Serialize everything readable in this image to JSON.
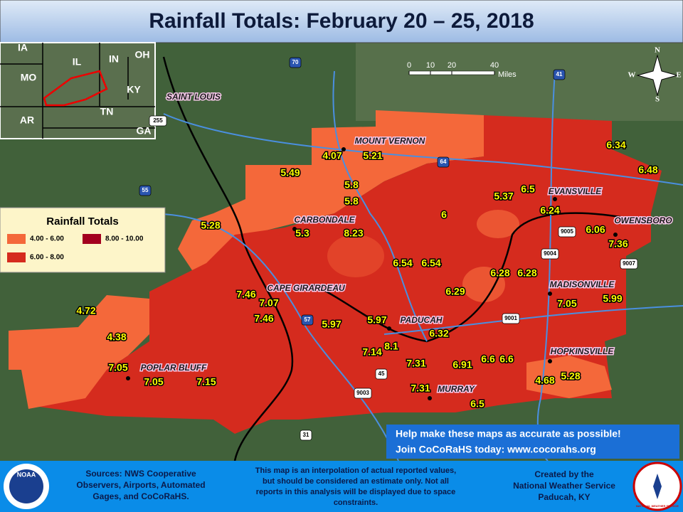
{
  "title": "Rainfall Totals: February 20 – 25, 2018",
  "legend": {
    "title": "Rainfall Totals",
    "items": [
      {
        "label": "4.00 - 6.00",
        "color": "#f4683a"
      },
      {
        "label": "6.00 - 8.00",
        "color": "#d52b1e"
      },
      {
        "label": "8.00 - 10.00",
        "color": "#a3001f"
      }
    ]
  },
  "cities": [
    "MOUNT VERNON",
    "SAINT LOUIS",
    "EVANSVILLE",
    "CARBONDALE",
    "OWENSBORO",
    "CAPE GIRARDEAU",
    "MADISONVILLE",
    "PADUCAH",
    "HOPKINSVILLE",
    "POPLAR BLUFF",
    "MURRAY"
  ],
  "rainfall": [
    6.34,
    6.48,
    4.07,
    5.21,
    5.49,
    5.8,
    5.8,
    6.5,
    5.37,
    6.24,
    5.28,
    6,
    6.06,
    5.3,
    8.23,
    7.36,
    6.54,
    6.54,
    6.28,
    6.28,
    6.29,
    7.46,
    7.07,
    7.05,
    5.99,
    7.46,
    4.72,
    5.97,
    5.97,
    6.32,
    4.38,
    8.1,
    7.14,
    7.31,
    6.91,
    6.6,
    6.6,
    7.05,
    7.05,
    7.15,
    4.68,
    5.28,
    7.31,
    6.5
  ],
  "inset_states": [
    "IA",
    "IL",
    "IN",
    "OH",
    "MO",
    "KY",
    "AR",
    "TN",
    "GA"
  ],
  "highways": [
    "70",
    "55",
    "57",
    "64",
    "41",
    "45",
    "255",
    "9001",
    "9003",
    "9004",
    "9005",
    "9007",
    "31"
  ],
  "scale": {
    "ticks": [
      "0",
      "10",
      "20",
      "40"
    ],
    "unit": "Miles"
  },
  "compass": {
    "n": "N",
    "e": "E",
    "s": "S",
    "w": "W"
  },
  "banner": [
    "Help make these maps as accurate as possible!",
    "Join CoCoRaHS today: www.cocorahs.org"
  ],
  "footer": {
    "sources": [
      "Sources: NWS Cooperative",
      "Observers, Airports, Automated",
      "Gages, and CoCoRaHS."
    ],
    "disclaimer": [
      "This map is an interpolation of actual reported values,",
      "but should be considered an estimate only. Not all",
      "reports in this analysis will be displayed due to space",
      "constraints."
    ],
    "credit": [
      "Created by the",
      "National Weather Service",
      "Paducah, KY"
    ],
    "noaa": "NOAA",
    "nws": "NATIONAL WEATHER SERVICE"
  }
}
